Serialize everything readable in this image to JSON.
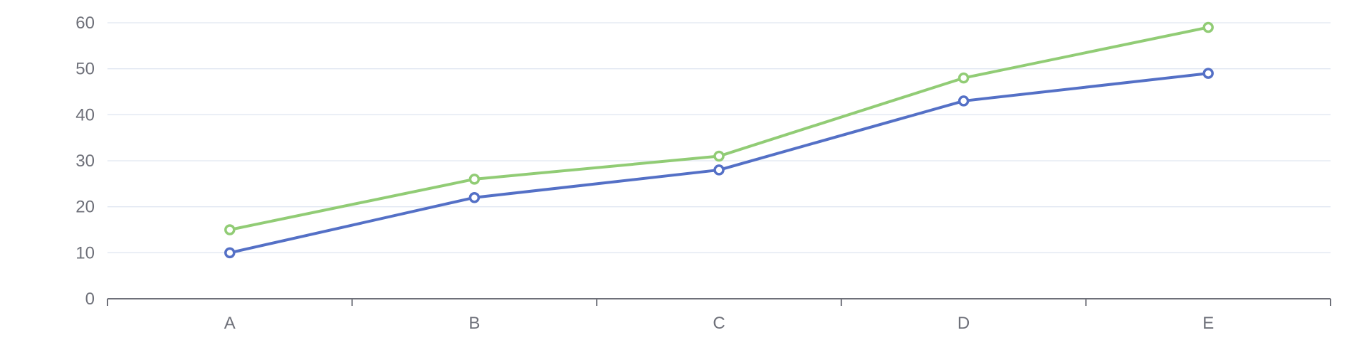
{
  "chart_data": {
    "type": "line",
    "categories": [
      "A",
      "B",
      "C",
      "D",
      "E"
    ],
    "ylim": [
      0,
      60
    ],
    "yticks": [
      0,
      10,
      20,
      30,
      40,
      50,
      60
    ],
    "grid": true,
    "series": [
      {
        "values": [
          10,
          22,
          28,
          43,
          49
        ],
        "color": "#5470c6"
      },
      {
        "values": [
          15,
          26,
          31,
          48,
          59
        ],
        "color": "#91cc75"
      }
    ],
    "colors": {
      "grid": "#e0e6f1",
      "axis": "#6e7079",
      "label": "#6e7079",
      "background": "#ffffff"
    }
  }
}
